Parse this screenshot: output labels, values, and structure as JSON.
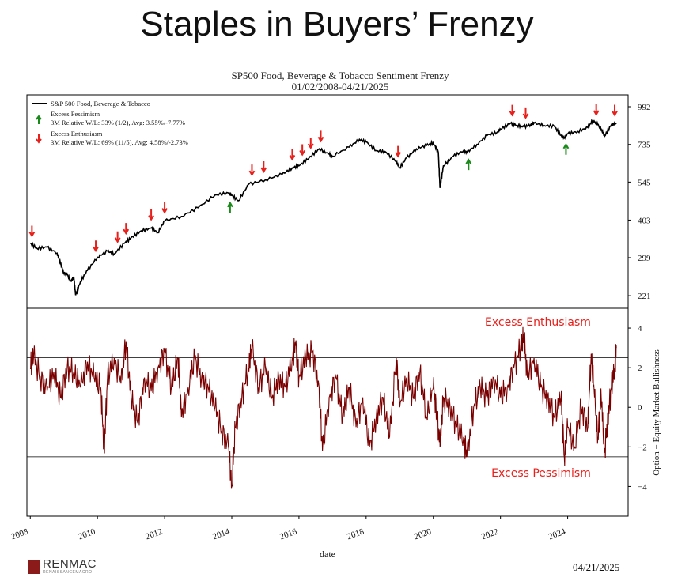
{
  "slide_title": "Staples in Buyers’ Frenzy",
  "chart_title_line1": "SP500 Food, Beverage & Tobacco Sentiment Frenzy",
  "chart_title_line2": "01/02/2008-04/21/2025",
  "logo_text": "RENMAC",
  "logo_subtext": "RENAISSANCEMACRO",
  "footer_date": "04/21/2025",
  "colors": {
    "price_line": "#000000",
    "sentiment_line": "#7a0000",
    "enthusiasm": "#e8201b",
    "pessimism": "#1a8a1a"
  },
  "chart_data": [
    {
      "type": "line",
      "name": "price-panel",
      "legend": [
        {
          "label": "S&P 500 Food, Beverage & Tobacco",
          "marker": "line"
        },
        {
          "label": "Excess Pessimism",
          "detail": "3M Relative W/L: 33% (1/2), Avg: 3.55%/-7.77%",
          "marker": "green-up-arrow"
        },
        {
          "label": "Excess Enthusiasm",
          "detail": "3M Relative W/L: 69% (11/5), Avg: 4.58%/-2.73%",
          "marker": "red-down-arrow"
        }
      ],
      "y_scale": "log",
      "yticks": [
        221,
        299,
        403,
        545,
        735,
        992
      ],
      "ylim": [
        200,
        1090
      ],
      "xlim": [
        2007.9,
        2025.8
      ],
      "series": [
        {
          "name": "S&P 500 Food, Beverage & Tobacco",
          "points": [
            [
              2008.0,
              335
            ],
            [
              2008.2,
              322
            ],
            [
              2008.5,
              325
            ],
            [
              2008.8,
              310
            ],
            [
              2008.9,
              285
            ],
            [
              2009.0,
              265
            ],
            [
              2009.1,
              262
            ],
            [
              2009.2,
              248
            ],
            [
              2009.3,
              255
            ],
            [
              2009.35,
              222
            ],
            [
              2009.5,
              248
            ],
            [
              2009.7,
              270
            ],
            [
              2010.0,
              300
            ],
            [
              2010.3,
              315
            ],
            [
              2010.5,
              308
            ],
            [
              2010.8,
              335
            ],
            [
              2011.0,
              350
            ],
            [
              2011.3,
              370
            ],
            [
              2011.6,
              378
            ],
            [
              2011.8,
              365
            ],
            [
              2012.0,
              400
            ],
            [
              2012.5,
              415
            ],
            [
              2013.0,
              445
            ],
            [
              2013.5,
              492
            ],
            [
              2013.9,
              500
            ],
            [
              2014.0,
              490
            ],
            [
              2014.2,
              470
            ],
            [
              2014.5,
              535
            ],
            [
              2015.0,
              555
            ],
            [
              2015.5,
              580
            ],
            [
              2015.8,
              610
            ],
            [
              2016.0,
              620
            ],
            [
              2016.3,
              660
            ],
            [
              2016.6,
              710
            ],
            [
              2016.9,
              680
            ],
            [
              2017.0,
              670
            ],
            [
              2017.5,
              720
            ],
            [
              2017.8,
              765
            ],
            [
              2018.0,
              750
            ],
            [
              2018.3,
              700
            ],
            [
              2018.6,
              690
            ],
            [
              2018.9,
              640
            ],
            [
              2019.0,
              610
            ],
            [
              2019.2,
              660
            ],
            [
              2019.5,
              710
            ],
            [
              2019.8,
              730
            ],
            [
              2020.0,
              745
            ],
            [
              2020.15,
              690
            ],
            [
              2020.2,
              520
            ],
            [
              2020.3,
              620
            ],
            [
              2020.6,
              670
            ],
            [
              2020.9,
              700
            ],
            [
              2021.0,
              690
            ],
            [
              2021.3,
              735
            ],
            [
              2021.6,
              790
            ],
            [
              2021.9,
              810
            ],
            [
              2022.0,
              830
            ],
            [
              2022.3,
              870
            ],
            [
              2022.5,
              855
            ],
            [
              2022.7,
              845
            ],
            [
              2022.9,
              860
            ],
            [
              2023.0,
              870
            ],
            [
              2023.3,
              855
            ],
            [
              2023.6,
              850
            ],
            [
              2023.8,
              790
            ],
            [
              2023.9,
              775
            ],
            [
              2024.0,
              800
            ],
            [
              2024.3,
              815
            ],
            [
              2024.6,
              840
            ],
            [
              2024.75,
              890
            ],
            [
              2024.9,
              860
            ],
            [
              2025.0,
              830
            ],
            [
              2025.1,
              785
            ],
            [
              2025.3,
              860
            ],
            [
              2025.45,
              870
            ]
          ]
        }
      ],
      "excess_enthusiasm_signals": [
        2008.05,
        2009.95,
        2010.6,
        2010.85,
        2011.6,
        2012.0,
        2014.6,
        2014.95,
        2015.8,
        2016.1,
        2016.35,
        2016.65,
        2018.95,
        2022.35,
        2022.75,
        2024.85,
        2025.4
      ],
      "excess_pessimism_signals": [
        2013.95,
        2021.05,
        2023.95
      ]
    },
    {
      "type": "line",
      "name": "sentiment-panel",
      "ylabel": "Option + Equity Market Bullishness",
      "xlabel": "date",
      "xticks": [
        2008,
        2010,
        2012,
        2014,
        2016,
        2018,
        2020,
        2022,
        2024
      ],
      "yticks": [
        -4,
        -2,
        0,
        2,
        4
      ],
      "ylim": [
        -5.5,
        5.0
      ],
      "xlim": [
        2007.9,
        2025.8
      ],
      "thresholds": [
        2.5,
        -2.5
      ],
      "annotations": [
        "Excess Enthusiasm",
        "Excess Pessimism"
      ],
      "series": [
        {
          "name": "bullishness",
          "points": [
            [
              2008.0,
              2.0
            ],
            [
              2008.1,
              2.6
            ],
            [
              2008.3,
              1.5
            ],
            [
              2008.5,
              0.8
            ],
            [
              2008.7,
              1.8
            ],
            [
              2008.9,
              0.5
            ],
            [
              2009.1,
              2.0
            ],
            [
              2009.3,
              1.8
            ],
            [
              2009.5,
              1.0
            ],
            [
              2009.7,
              2.3
            ],
            [
              2009.9,
              1.5
            ],
            [
              2010.1,
              1.0
            ],
            [
              2010.2,
              -2.2
            ],
            [
              2010.3,
              1.5
            ],
            [
              2010.5,
              2.5
            ],
            [
              2010.7,
              1.2
            ],
            [
              2010.85,
              3.3
            ],
            [
              2011.0,
              0.5
            ],
            [
              2011.2,
              -0.8
            ],
            [
              2011.4,
              1.5
            ],
            [
              2011.6,
              0.8
            ],
            [
              2011.8,
              2.0
            ],
            [
              2012.0,
              2.8
            ],
            [
              2012.2,
              1.0
            ],
            [
              2012.4,
              2.5
            ],
            [
              2012.5,
              -0.5
            ],
            [
              2012.7,
              1.0
            ],
            [
              2012.9,
              2.5
            ],
            [
              2013.1,
              1.5
            ],
            [
              2013.3,
              1.0
            ],
            [
              2013.5,
              0.0
            ],
            [
              2013.7,
              -1.2
            ],
            [
              2013.9,
              -2.0
            ],
            [
              2014.0,
              -4.0
            ],
            [
              2014.1,
              -1.0
            ],
            [
              2014.3,
              0.5
            ],
            [
              2014.5,
              2.0
            ],
            [
              2014.6,
              3.0
            ],
            [
              2014.8,
              1.0
            ],
            [
              2015.0,
              2.0
            ],
            [
              2015.2,
              0.5
            ],
            [
              2015.4,
              1.5
            ],
            [
              2015.6,
              1.0
            ],
            [
              2015.8,
              2.5
            ],
            [
              2015.9,
              3.1
            ],
            [
              2016.0,
              1.5
            ],
            [
              2016.2,
              2.5
            ],
            [
              2016.4,
              2.8
            ],
            [
              2016.6,
              1.0
            ],
            [
              2016.7,
              -2.2
            ],
            [
              2016.9,
              0.5
            ],
            [
              2017.1,
              1.5
            ],
            [
              2017.3,
              -0.5
            ],
            [
              2017.5,
              1.0
            ],
            [
              2017.7,
              -1.0
            ],
            [
              2017.9,
              0.5
            ],
            [
              2018.1,
              -2.0
            ],
            [
              2018.3,
              -0.5
            ],
            [
              2018.5,
              0.5
            ],
            [
              2018.7,
              -1.5
            ],
            [
              2018.9,
              2.5
            ],
            [
              2019.0,
              0.0
            ],
            [
              2019.2,
              1.5
            ],
            [
              2019.4,
              0.5
            ],
            [
              2019.6,
              1.8
            ],
            [
              2019.8,
              -0.5
            ],
            [
              2020.0,
              1.0
            ],
            [
              2020.1,
              -0.2
            ],
            [
              2020.2,
              -2.0
            ],
            [
              2020.3,
              0.5
            ],
            [
              2020.5,
              0.0
            ],
            [
              2020.7,
              -1.0
            ],
            [
              2020.9,
              -1.5
            ],
            [
              2021.0,
              -2.5
            ],
            [
              2021.2,
              0.0
            ],
            [
              2021.4,
              1.0
            ],
            [
              2021.6,
              0.5
            ],
            [
              2021.8,
              1.5
            ],
            [
              2022.0,
              0.5
            ],
            [
              2022.2,
              1.0
            ],
            [
              2022.4,
              2.0
            ],
            [
              2022.6,
              3.0
            ],
            [
              2022.7,
              3.6
            ],
            [
              2022.8,
              1.5
            ],
            [
              2023.0,
              2.5
            ],
            [
              2023.2,
              1.0
            ],
            [
              2023.4,
              0.5
            ],
            [
              2023.6,
              -0.5
            ],
            [
              2023.8,
              0.5
            ],
            [
              2023.9,
              -2.5
            ],
            [
              2024.0,
              -1.0
            ],
            [
              2024.2,
              -2.0
            ],
            [
              2024.4,
              0.0
            ],
            [
              2024.6,
              -1.0
            ],
            [
              2024.7,
              2.7
            ],
            [
              2024.8,
              0.5
            ],
            [
              2024.9,
              -1.5
            ],
            [
              2025.0,
              0.5
            ],
            [
              2025.1,
              -2.3
            ],
            [
              2025.2,
              -0.5
            ],
            [
              2025.3,
              1.0
            ],
            [
              2025.4,
              2.0
            ],
            [
              2025.45,
              3.0
            ]
          ]
        }
      ]
    }
  ]
}
